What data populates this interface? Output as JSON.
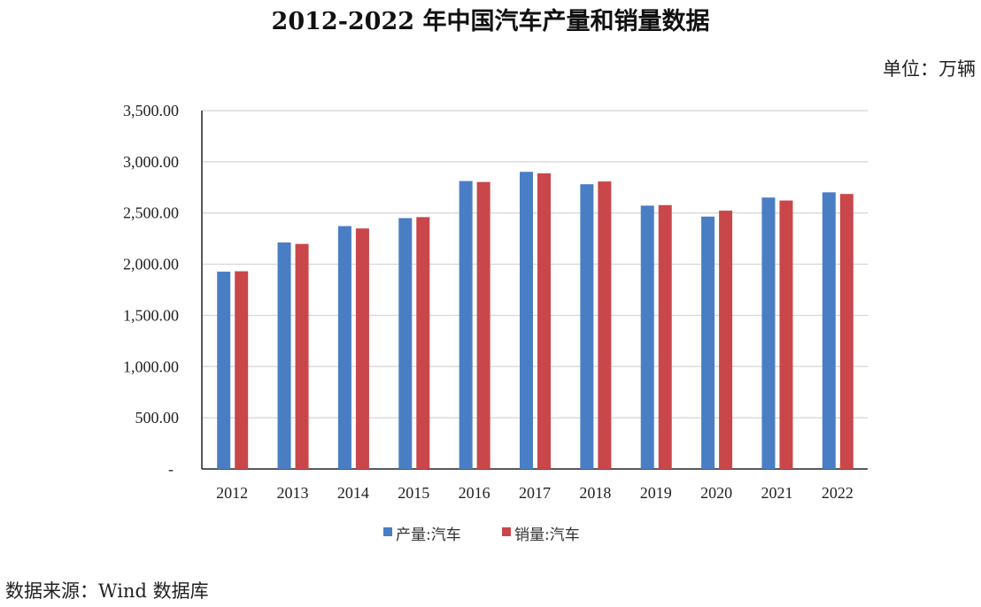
{
  "chart_data": {
    "type": "bar",
    "title": "2012-2022 年中国汽车产量和销量数据",
    "unit_label": "单位：万辆",
    "source": "数据来源：Wind 数据库",
    "categories": [
      "2012",
      "2013",
      "2014",
      "2015",
      "2016",
      "2017",
      "2018",
      "2019",
      "2020",
      "2021",
      "2022"
    ],
    "series": [
      {
        "name": "产量:汽车",
        "color": "#4a7ec4",
        "values": [
          1927,
          2212,
          2372,
          2450,
          2812,
          2902,
          2781,
          2572,
          2465,
          2651,
          2702
        ]
      },
      {
        "name": "销量:汽车",
        "color": "#c9474a",
        "values": [
          1931,
          2198,
          2349,
          2460,
          2803,
          2888,
          2808,
          2577,
          2523,
          2622,
          2686
        ]
      }
    ],
    "ylim": [
      0,
      3500
    ],
    "yticks": [
      "-",
      "500.00",
      "1,000.00",
      "1,500.00",
      "2,000.00",
      "2,500.00",
      "3,000.00",
      "3,500.00"
    ],
    "grid": true,
    "legend": "bottom"
  }
}
